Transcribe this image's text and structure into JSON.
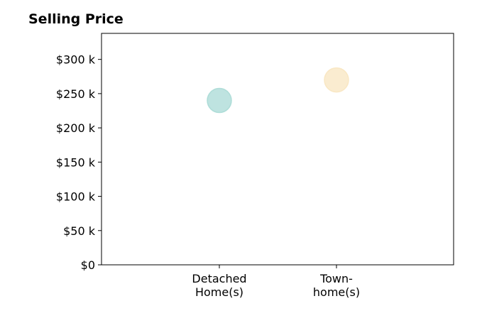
{
  "chart_data": {
    "type": "scatter",
    "title": "Selling Price",
    "xlabel": "",
    "ylabel": "",
    "categories": [
      [
        "Detached",
        "Home(s)"
      ],
      [
        "Town-",
        "home(s)"
      ]
    ],
    "points": [
      {
        "category": "Detached Home(s)",
        "value": 240000,
        "color": "#a8dad5"
      },
      {
        "category": "Town-home(s)",
        "value": 270000,
        "color": "#f8e6c0"
      }
    ],
    "ylim": [
      0,
      338000
    ],
    "yticks": [
      {
        "value": 0,
        "label": "$0"
      },
      {
        "value": 50000,
        "label": "$50 k"
      },
      {
        "value": 100000,
        "label": "$100 k"
      },
      {
        "value": 150000,
        "label": "$150 k"
      },
      {
        "value": 200000,
        "label": "$200 k"
      },
      {
        "value": 250000,
        "label": "$250 k"
      },
      {
        "value": 300000,
        "label": "$300 k"
      }
    ],
    "grid": false,
    "legend": "none"
  }
}
